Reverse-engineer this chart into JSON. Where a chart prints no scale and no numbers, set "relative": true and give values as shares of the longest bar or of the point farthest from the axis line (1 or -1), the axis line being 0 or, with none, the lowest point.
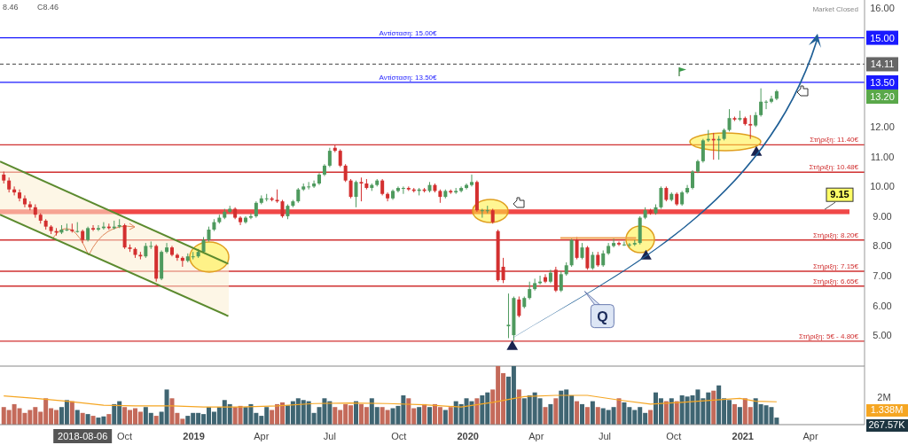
{
  "chart_data": [
    {
      "type": "candlestick",
      "xlim": [
        "2018-04-18",
        "2021-06-12"
      ],
      "ylim": [
        3.96,
        16.27
      ],
      "tick_labels": "y",
      "yticks": [
        {
          "value": 5,
          "label": "5.00"
        },
        {
          "value": 6,
          "label": "6.00"
        },
        {
          "value": 7,
          "label": "7.00"
        },
        {
          "value": 8,
          "label": "8.00"
        },
        {
          "value": 9,
          "label": "9.00"
        },
        {
          "value": 10,
          "label": "10.00"
        },
        {
          "value": 11,
          "label": "11.00"
        },
        {
          "value": 12,
          "label": "12.00"
        },
        {
          "value": 13.5,
          "label": "13.50"
        },
        {
          "value": 14.11,
          "label": "14.11"
        },
        {
          "value": 15,
          "label": "15.00"
        },
        {
          "value": 16,
          "label": "16.00"
        }
      ],
      "x": [
        "2018-04-23",
        "2018-04-30",
        "2018-05-07",
        "2018-05-14",
        "2018-05-21",
        "2018-05-28",
        "2018-06-04",
        "2018-06-11",
        "2018-06-18",
        "2018-06-25",
        "2018-07-02",
        "2018-07-09",
        "2018-07-16",
        "2018-07-23",
        "2018-07-30",
        "2018-08-06",
        "2018-08-13",
        "2018-08-20",
        "2018-08-27",
        "2018-09-03",
        "2018-09-10",
        "2018-09-17",
        "2018-09-24",
        "2018-10-01",
        "2018-10-08",
        "2018-10-15",
        "2018-10-22",
        "2018-10-29",
        "2018-11-05",
        "2018-11-12",
        "2018-11-19",
        "2018-11-26",
        "2018-12-03",
        "2018-12-10",
        "2018-12-17",
        "2018-12-24",
        "2018-12-31",
        "2019-01-07",
        "2019-01-14",
        "2019-01-21",
        "2019-01-28",
        "2019-02-04",
        "2019-02-11",
        "2019-02-18",
        "2019-02-25",
        "2019-03-04",
        "2019-03-11",
        "2019-03-18",
        "2019-03-25",
        "2019-04-01",
        "2019-04-08",
        "2019-04-15",
        "2019-04-22",
        "2019-04-29",
        "2019-05-06",
        "2019-05-13",
        "2019-05-20",
        "2019-05-27",
        "2019-06-03",
        "2019-06-10",
        "2019-06-17",
        "2019-06-24",
        "2019-07-01",
        "2019-07-08",
        "2019-07-15",
        "2019-07-22",
        "2019-07-29",
        "2019-08-05",
        "2019-08-12",
        "2019-08-19",
        "2019-08-26",
        "2019-09-02",
        "2019-09-09",
        "2019-09-16",
        "2019-09-23",
        "2019-09-30",
        "2019-10-07",
        "2019-10-14",
        "2019-10-21",
        "2019-10-28",
        "2019-11-04",
        "2019-11-11",
        "2019-11-18",
        "2019-11-25",
        "2019-12-02",
        "2019-12-09",
        "2019-12-16",
        "2019-12-23",
        "2019-12-30",
        "2020-01-06",
        "2020-01-13",
        "2020-01-20",
        "2020-01-27",
        "2020-02-03",
        "2020-02-10",
        "2020-02-17",
        "2020-02-24",
        "2020-03-02",
        "2020-03-09",
        "2020-03-16",
        "2020-03-23",
        "2020-03-30",
        "2020-04-06",
        "2020-04-13",
        "2020-04-20",
        "2020-04-27",
        "2020-05-04",
        "2020-05-11",
        "2020-05-18",
        "2020-05-25",
        "2020-06-01",
        "2020-06-08",
        "2020-06-15",
        "2020-06-22",
        "2020-06-29",
        "2020-07-06",
        "2020-07-13",
        "2020-07-20",
        "2020-07-27",
        "2020-08-03",
        "2020-08-10",
        "2020-08-17",
        "2020-08-24",
        "2020-08-31",
        "2020-09-07",
        "2020-09-14",
        "2020-09-21",
        "2020-09-28",
        "2020-10-05",
        "2020-10-12",
        "2020-10-19",
        "2020-10-26",
        "2020-11-02",
        "2020-11-09",
        "2020-11-16",
        "2020-11-23",
        "2020-11-30",
        "2020-12-07",
        "2020-12-14",
        "2020-12-21",
        "2020-12-28",
        "2021-01-04",
        "2021-01-11",
        "2021-01-18",
        "2021-01-25",
        "2021-02-01",
        "2021-02-08",
        "2021-02-15"
      ],
      "ohlc": [
        [
          10.4,
          10.5,
          10.1,
          10.2
        ],
        [
          10.2,
          10.3,
          9.8,
          9.9
        ],
        [
          9.9,
          10.0,
          9.7,
          9.8
        ],
        [
          9.8,
          9.9,
          9.5,
          9.6
        ],
        [
          9.6,
          9.7,
          9.3,
          9.4
        ],
        [
          9.4,
          9.5,
          9.2,
          9.3
        ],
        [
          9.3,
          9.4,
          8.95,
          9.05
        ],
        [
          9.05,
          9.1,
          8.75,
          8.85
        ],
        [
          8.85,
          8.9,
          8.55,
          8.65
        ],
        [
          8.65,
          8.7,
          8.4,
          8.5
        ],
        [
          8.5,
          8.6,
          8.35,
          8.45
        ],
        [
          8.45,
          8.7,
          8.4,
          8.55
        ],
        [
          8.55,
          8.75,
          8.5,
          8.55
        ],
        [
          8.55,
          8.75,
          8.45,
          8.5
        ],
        [
          8.5,
          8.8,
          8.45,
          8.5
        ],
        [
          8.5,
          8.55,
          8.1,
          8.2
        ],
        [
          8.2,
          8.65,
          8.15,
          8.6
        ],
        [
          8.6,
          8.7,
          8.5,
          8.55
        ],
        [
          8.55,
          8.7,
          8.5,
          8.6
        ],
        [
          8.6,
          8.8,
          8.55,
          8.65
        ],
        [
          8.65,
          8.75,
          8.55,
          8.6
        ],
        [
          8.6,
          8.85,
          8.55,
          8.65
        ],
        [
          8.65,
          8.9,
          8.6,
          8.7
        ],
        [
          8.7,
          8.75,
          7.9,
          7.95
        ],
        [
          7.95,
          8.05,
          7.8,
          7.9
        ],
        [
          7.9,
          7.95,
          7.6,
          7.7
        ],
        [
          7.7,
          7.8,
          7.55,
          7.65
        ],
        [
          7.65,
          8.1,
          7.6,
          8.0
        ],
        [
          8.0,
          8.15,
          7.9,
          8.0
        ],
        [
          8.0,
          8.05,
          6.8,
          6.9
        ],
        [
          6.9,
          7.85,
          6.85,
          7.8
        ],
        [
          7.8,
          8.1,
          7.75,
          7.95
        ],
        [
          7.95,
          8.0,
          7.65,
          7.7
        ],
        [
          7.7,
          7.75,
          7.5,
          7.6
        ],
        [
          7.6,
          7.65,
          7.3,
          7.5
        ],
        [
          7.5,
          7.75,
          7.45,
          7.65
        ],
        [
          7.65,
          7.8,
          7.55,
          7.65
        ],
        [
          7.65,
          7.9,
          7.6,
          7.8
        ],
        [
          7.8,
          8.3,
          7.75,
          8.2
        ],
        [
          8.2,
          8.65,
          8.15,
          8.55
        ],
        [
          8.55,
          8.9,
          8.5,
          8.8
        ],
        [
          8.8,
          9.05,
          8.75,
          8.95
        ],
        [
          8.95,
          9.25,
          8.9,
          9.15
        ],
        [
          9.15,
          9.35,
          9.1,
          9.25
        ],
        [
          9.25,
          9.3,
          8.9,
          8.95
        ],
        [
          8.95,
          9.0,
          8.7,
          8.8
        ],
        [
          8.8,
          9.0,
          8.75,
          8.95
        ],
        [
          8.95,
          9.1,
          8.9,
          9.0
        ],
        [
          9.0,
          9.5,
          8.95,
          9.45
        ],
        [
          9.45,
          9.7,
          9.4,
          9.6
        ],
        [
          9.6,
          9.75,
          9.5,
          9.6
        ],
        [
          9.6,
          9.65,
          9.5,
          9.55
        ],
        [
          9.55,
          9.9,
          9.45,
          9.5
        ],
        [
          9.5,
          9.55,
          8.95,
          9.0
        ],
        [
          9.0,
          9.4,
          8.9,
          9.35
        ],
        [
          9.35,
          9.55,
          9.3,
          9.5
        ],
        [
          9.5,
          9.95,
          9.45,
          9.9
        ],
        [
          9.9,
          10.1,
          9.85,
          10.0
        ],
        [
          10.0,
          10.15,
          9.9,
          10.0
        ],
        [
          10.0,
          10.2,
          9.95,
          10.1
        ],
        [
          10.1,
          10.45,
          10.05,
          10.4
        ],
        [
          10.4,
          10.75,
          10.35,
          10.7
        ],
        [
          10.7,
          11.3,
          10.65,
          11.2
        ],
        [
          11.3,
          11.4,
          11.15,
          11.2
        ],
        [
          11.2,
          11.25,
          10.65,
          10.7
        ],
        [
          10.7,
          10.75,
          10.15,
          10.2
        ],
        [
          10.2,
          10.25,
          9.6,
          9.65
        ],
        [
          9.65,
          10.2,
          9.3,
          10.15
        ],
        [
          10.15,
          10.3,
          9.5,
          10.1
        ],
        [
          10.1,
          10.25,
          9.9,
          9.95
        ],
        [
          9.95,
          10.1,
          9.85,
          10.05
        ],
        [
          10.05,
          10.25,
          10.0,
          10.2
        ],
        [
          10.2,
          10.25,
          9.7,
          9.75
        ],
        [
          9.75,
          9.8,
          9.5,
          9.6
        ],
        [
          9.6,
          9.9,
          9.55,
          9.85
        ],
        [
          9.85,
          10.0,
          9.8,
          9.95
        ],
        [
          9.95,
          10.0,
          9.75,
          9.95
        ],
        [
          9.95,
          10.0,
          9.85,
          9.9
        ],
        [
          9.9,
          9.95,
          9.8,
          9.85
        ],
        [
          9.85,
          9.95,
          9.7,
          9.9
        ],
        [
          9.9,
          9.95,
          9.8,
          9.85
        ],
        [
          9.85,
          10.15,
          9.8,
          10.05
        ],
        [
          10.05,
          10.1,
          9.8,
          9.85
        ],
        [
          9.85,
          9.9,
          9.45,
          9.65
        ],
        [
          9.65,
          9.9,
          9.6,
          9.85
        ],
        [
          9.85,
          9.9,
          9.75,
          9.8
        ],
        [
          9.8,
          9.95,
          9.75,
          9.85
        ],
        [
          9.85,
          10.0,
          9.8,
          9.95
        ],
        [
          9.95,
          10.1,
          9.9,
          10.05
        ],
        [
          10.05,
          10.4,
          10.0,
          10.15
        ],
        [
          10.15,
          10.2,
          9.15,
          9.2
        ],
        [
          9.2,
          9.25,
          8.95,
          9.2
        ],
        [
          9.2,
          9.35,
          9.1,
          9.2
        ],
        [
          9.2,
          9.25,
          8.75,
          8.8
        ],
        [
          8.5,
          8.55,
          6.8,
          6.85
        ],
        [
          7.3,
          7.6,
          6.75,
          6.85
        ],
        [
          5.3,
          6.4,
          4.9,
          5.35
        ],
        [
          5.0,
          6.3,
          4.8,
          6.25
        ],
        [
          6.2,
          6.3,
          5.6,
          5.65
        ],
        [
          5.95,
          6.3,
          5.9,
          6.25
        ],
        [
          6.25,
          6.8,
          6.2,
          6.55
        ],
        [
          6.55,
          6.9,
          6.5,
          6.75
        ],
        [
          6.75,
          7.0,
          6.7,
          6.8
        ],
        [
          6.95,
          7.05,
          6.75,
          6.8
        ],
        [
          6.8,
          7.2,
          6.75,
          7.1
        ],
        [
          7.2,
          7.3,
          6.45,
          6.5
        ],
        [
          6.5,
          7.15,
          6.45,
          7.05
        ],
        [
          7.05,
          7.45,
          7.0,
          7.35
        ],
        [
          7.35,
          8.25,
          7.3,
          8.2
        ],
        [
          8.2,
          8.3,
          7.55,
          7.6
        ],
        [
          7.6,
          8.1,
          7.55,
          7.95
        ],
        [
          7.95,
          8.0,
          7.2,
          7.25
        ],
        [
          7.25,
          7.8,
          7.2,
          7.7
        ],
        [
          7.7,
          7.8,
          7.3,
          7.35
        ],
        [
          7.35,
          7.85,
          7.3,
          7.75
        ],
        [
          7.75,
          8.1,
          7.7,
          8.0
        ],
        [
          8.0,
          8.25,
          7.95,
          8.1
        ],
        [
          8.1,
          8.15,
          8.0,
          8.05
        ],
        [
          8.05,
          8.15,
          8.0,
          8.05
        ],
        [
          8.05,
          8.1,
          7.95,
          8.05
        ],
        [
          8.05,
          8.2,
          8.0,
          8.1
        ],
        [
          8.1,
          9.0,
          8.05,
          8.95
        ],
        [
          8.95,
          9.3,
          8.9,
          9.2
        ],
        [
          9.2,
          9.25,
          9.05,
          9.1
        ],
        [
          9.1,
          9.4,
          9.05,
          9.3
        ],
        [
          9.3,
          10.0,
          9.25,
          9.95
        ],
        [
          9.95,
          10.0,
          9.5,
          9.55
        ],
        [
          9.55,
          9.8,
          9.5,
          9.75
        ],
        [
          9.75,
          9.8,
          9.35,
          9.4
        ],
        [
          9.4,
          9.85,
          9.35,
          9.8
        ],
        [
          9.8,
          10.05,
          9.75,
          9.95
        ],
        [
          9.95,
          10.55,
          9.9,
          10.5
        ],
        [
          10.5,
          10.9,
          10.45,
          10.85
        ],
        [
          10.85,
          11.6,
          10.8,
          11.55
        ],
        [
          11.55,
          11.9,
          11.5,
          11.6
        ],
        [
          11.6,
          11.8,
          10.9,
          11.55
        ],
        [
          11.55,
          11.7,
          10.9,
          11.6
        ],
        [
          11.6,
          11.95,
          11.55,
          11.9
        ],
        [
          11.9,
          12.6,
          11.85,
          12.3
        ],
        [
          12.3,
          12.35,
          12.2,
          12.25
        ],
        [
          12.25,
          12.55,
          12.2,
          12.3
        ],
        [
          12.3,
          12.35,
          12.05,
          12.1
        ],
        [
          12.1,
          12.4,
          11.6,
          12.05
        ],
        [
          12.05,
          12.5,
          12.0,
          12.4
        ],
        [
          12.4,
          13.3,
          12.35,
          12.85
        ],
        [
          12.85,
          12.9,
          12.6,
          12.85
        ],
        [
          12.85,
          13.05,
          12.8,
          12.95
        ],
        [
          12.95,
          13.25,
          12.9,
          13.2
        ]
      ],
      "colors": [
        "#d32f2f",
        "#d32f2f",
        "#d32f2f",
        "#d32f2f",
        "#d32f2f",
        "#d32f2f",
        "#d32f2f",
        "#d32f2f",
        "#d32f2f",
        "#d32f2f",
        "#d32f2f",
        "#4e9a5e",
        "#4e9a5e",
        "#d32f2f",
        "#4e9a5e",
        "#d32f2f",
        "#4e9a5e",
        "#d32f2f",
        "#4e9a5e",
        "#4e9a5e",
        "#d32f2f",
        "#4e9a5e",
        "#4e9a5e",
        "#d32f2f",
        "#d32f2f",
        "#d32f2f",
        "#d32f2f",
        "#4e9a5e",
        "#4e9a5e",
        "#d32f2f",
        "#4e9a5e",
        "#4e9a5e",
        "#d32f2f",
        "#d32f2f",
        "#d32f2f",
        "#4e9a5e",
        "#4e9a5e",
        "#4e9a5e",
        "#4e9a5e",
        "#4e9a5e",
        "#4e9a5e",
        "#4e9a5e",
        "#4e9a5e",
        "#4e9a5e",
        "#d32f2f",
        "#d32f2f",
        "#4e9a5e",
        "#4e9a5e",
        "#4e9a5e",
        "#4e9a5e",
        "#4e9a5e",
        "#d32f2f",
        "#d32f2f",
        "#d32f2f",
        "#4e9a5e",
        "#4e9a5e",
        "#4e9a5e",
        "#4e9a5e",
        "#4e9a5e",
        "#4e9a5e",
        "#4e9a5e",
        "#4e9a5e",
        "#4e9a5e",
        "#d32f2f",
        "#d32f2f",
        "#d32f2f",
        "#d32f2f",
        "#4e9a5e",
        "#d32f2f",
        "#d32f2f",
        "#4e9a5e",
        "#4e9a5e",
        "#d32f2f",
        "#d32f2f",
        "#4e9a5e",
        "#4e9a5e",
        "#4e9a5e",
        "#d32f2f",
        "#d32f2f",
        "#4e9a5e",
        "#d32f2f",
        "#4e9a5e",
        "#d32f2f",
        "#d32f2f",
        "#4e9a5e",
        "#d32f2f",
        "#4e9a5e",
        "#4e9a5e",
        "#4e9a5e",
        "#4e9a5e",
        "#d32f2f",
        "#4e9a5e",
        "#4e9a5e",
        "#d32f2f",
        "#d32f2f",
        "#d32f2f",
        "#4e9a5e",
        "#4e9a5e",
        "#d32f2f",
        "#4e9a5e",
        "#4e9a5e",
        "#4e9a5e",
        "#4e9a5e",
        "#d32f2f",
        "#4e9a5e",
        "#d32f2f",
        "#4e9a5e",
        "#4e9a5e",
        "#4e9a5e",
        "#d32f2f",
        "#4e9a5e",
        "#d32f2f",
        "#4e9a5e",
        "#d32f2f",
        "#4e9a5e",
        "#4e9a5e",
        "#4e9a5e",
        "#d32f2f",
        "#4e9a5e",
        "#4e9a5e",
        "#4e9a5e",
        "#4e9a5e",
        "#4e9a5e",
        "#d32f2f",
        "#4e9a5e",
        "#4e9a5e",
        "#d32f2f",
        "#4e9a5e",
        "#d32f2f",
        "#4e9a5e",
        "#4e9a5e",
        "#4e9a5e",
        "#4e9a5e",
        "#4e9a5e",
        "#4e9a5e",
        "#d32f2f",
        "#4e9a5e",
        "#4e9a5e",
        "#4e9a5e",
        "#d32f2f",
        "#4e9a5e",
        "#d32f2f",
        "#d32f2f",
        "#4e9a5e",
        "#4e9a5e",
        "#4e9a5e",
        "#4e9a5e",
        "#4e9a5e"
      ],
      "series": [
        {
          "type": "line",
          "x": [
            "2018-04-18",
            "2019-02-16"
          ],
          "values": [
            10.84,
            7.4
          ],
          "color": "#5b8a2e"
        },
        {
          "type": "line",
          "x": [
            "2018-04-18",
            "2019-02-16"
          ],
          "values": [
            9.05,
            5.64
          ],
          "color": "#5b8a2e"
        },
        {
          "type": "line",
          "x": [
            "2020-05-03",
            "2020-08-12"
          ],
          "values": [
            8.27,
            8.27
          ],
          "color": "#f0a050"
        },
        {
          "type": "scatter",
          "marker": "triangle",
          "x": [
            "2020-02-29",
            "2020-08-25",
            "2021-01-19"
          ],
          "values": [
            4.61,
            7.65,
            11.14
          ],
          "color": "#1a2450"
        }
      ],
      "bands": [
        {
          "axis": "y",
          "from": 9.07,
          "to": 9.23,
          "label": "9.15",
          "color": "#f04848"
        }
      ],
      "ref_lines": [
        {
          "axis": "y",
          "value": 15,
          "label": "Αντίσταση: 15.00€",
          "color": "#1a1aff"
        },
        {
          "axis": "y",
          "value": 14.11,
          "label": null,
          "color": "#666666",
          "line_style": "dashed"
        },
        {
          "axis": "y",
          "value": 13.5,
          "label": "Αντίσταση: 13.50€",
          "color": "#1a1aff"
        },
        {
          "axis": "y",
          "value": 11.4,
          "label": "Στήριξη: 11.40€",
          "color": "#d03030"
        },
        {
          "axis": "y",
          "value": 10.48,
          "label": "Στήριξη: 10.48€",
          "color": "#d03030"
        },
        {
          "axis": "y",
          "value": 8.2,
          "label": "Στήριξη: 8.20€",
          "color": "#d03030"
        },
        {
          "axis": "y",
          "value": 7.15,
          "label": "Στήριξη: 7.15€",
          "color": "#d03030"
        },
        {
          "axis": "y",
          "value": 6.65,
          "label": "Στήριξη: 6.65€",
          "color": "#d03030"
        },
        {
          "axis": "y",
          "value": 4.8,
          "label": "Στήριξη: 5€ - 4.80€",
          "color": "#d03030"
        }
      ],
      "annotations": [
        {
          "text": "Q",
          "x": "2020-06-28",
          "y": 5.64
        },
        "Market Closed",
        "8.46",
        "C8.46",
        "13.20"
      ]
    },
    {
      "type": "bar",
      "relative": true,
      "tick_labels": "x",
      "xlim": [
        "2018-04-18",
        "2021-06-12"
      ],
      "xticks": [
        {
          "value": "2018-08-06",
          "label": "2018-08-06"
        },
        {
          "value": "2018-10-01",
          "label": "Oct"
        },
        {
          "value": "2019-01-01",
          "label": "2019"
        },
        {
          "value": "2019-04-01",
          "label": "Apr"
        },
        {
          "value": "2019-07-01",
          "label": "Jul"
        },
        {
          "value": "2019-10-01",
          "label": "Oct"
        },
        {
          "value": "2020-01-01",
          "label": "2020"
        },
        {
          "value": "2020-04-01",
          "label": "Apr"
        },
        {
          "value": "2020-07-01",
          "label": "Jul"
        },
        {
          "value": "2020-10-01",
          "label": "Oct"
        },
        {
          "value": "2021-01-01",
          "label": "2021"
        },
        {
          "value": "2021-04-01",
          "label": "Apr"
        }
      ],
      "x": [
        "2018-04-23",
        "2018-04-30",
        "2018-05-07",
        "2018-05-14",
        "2018-05-21",
        "2018-05-28",
        "2018-06-04",
        "2018-06-11",
        "2018-06-18",
        "2018-06-25",
        "2018-07-02",
        "2018-07-09",
        "2018-07-16",
        "2018-07-23",
        "2018-07-30",
        "2018-08-06",
        "2018-08-13",
        "2018-08-20",
        "2018-08-27",
        "2018-09-03",
        "2018-09-10",
        "2018-09-17",
        "2018-09-24",
        "2018-10-01",
        "2018-10-08",
        "2018-10-15",
        "2018-10-22",
        "2018-10-29",
        "2018-11-05",
        "2018-11-12",
        "2018-11-19",
        "2018-11-26",
        "2018-12-03",
        "2018-12-10",
        "2018-12-17",
        "2018-12-24",
        "2018-12-31",
        "2019-01-07",
        "2019-01-14",
        "2019-01-21",
        "2019-01-28",
        "2019-02-04",
        "2019-02-11",
        "2019-02-18",
        "2019-02-25",
        "2019-03-04",
        "2019-03-11",
        "2019-03-18",
        "2019-03-25",
        "2019-04-01",
        "2019-04-08",
        "2019-04-15",
        "2019-04-22",
        "2019-04-29",
        "2019-05-06",
        "2019-05-13",
        "2019-05-20",
        "2019-05-27",
        "2019-06-03",
        "2019-06-10",
        "2019-06-17",
        "2019-06-24",
        "2019-07-01",
        "2019-07-08",
        "2019-07-15",
        "2019-07-22",
        "2019-07-29",
        "2019-08-05",
        "2019-08-12",
        "2019-08-19",
        "2019-08-26",
        "2019-09-02",
        "2019-09-09",
        "2019-09-16",
        "2019-09-23",
        "2019-09-30",
        "2019-10-07",
        "2019-10-14",
        "2019-10-21",
        "2019-10-28",
        "2019-11-04",
        "2019-11-11",
        "2019-11-18",
        "2019-11-25",
        "2019-12-02",
        "2019-12-09",
        "2019-12-16",
        "2019-12-23",
        "2019-12-30",
        "2020-01-06",
        "2020-01-13",
        "2020-01-20",
        "2020-01-27",
        "2020-02-03",
        "2020-02-10",
        "2020-02-17",
        "2020-02-24",
        "2020-03-02",
        "2020-03-09",
        "2020-03-16",
        "2020-03-23",
        "2020-03-30",
        "2020-04-06",
        "2020-04-13",
        "2020-04-20",
        "2020-04-27",
        "2020-05-04",
        "2020-05-11",
        "2020-05-18",
        "2020-05-25",
        "2020-06-01",
        "2020-06-08",
        "2020-06-15",
        "2020-06-22",
        "2020-06-29",
        "2020-07-06",
        "2020-07-13",
        "2020-07-20",
        "2020-07-27",
        "2020-08-03",
        "2020-08-10",
        "2020-08-17",
        "2020-08-24",
        "2020-08-31",
        "2020-09-07",
        "2020-09-14",
        "2020-09-21",
        "2020-09-28",
        "2020-10-05",
        "2020-10-12",
        "2020-10-19",
        "2020-10-26",
        "2020-11-02",
        "2020-11-09",
        "2020-11-16",
        "2020-11-23",
        "2020-11-30",
        "2020-12-07",
        "2020-12-14",
        "2020-12-21",
        "2020-12-28",
        "2021-01-04",
        "2021-01-11",
        "2021-01-18",
        "2021-01-25",
        "2021-02-01",
        "2021-02-08",
        "2021-02-15"
      ],
      "series": [
        {
          "type": "bar",
          "values": [
            0.3,
            0.25,
            0.35,
            0.28,
            0.2,
            0.25,
            0.3,
            0.22,
            0.45,
            0.28,
            0.25,
            0.3,
            0.42,
            0.4,
            0.25,
            0.2,
            0.18,
            0.15,
            0.12,
            0.14,
            0.18,
            0.35,
            0.4,
            0.3,
            0.25,
            0.28,
            0.22,
            0.3,
            0.2,
            0.15,
            0.22,
            0.6,
            0.45,
            0.2,
            0.1,
            0.15,
            0.2,
            0.2,
            0.18,
            0.3,
            0.22,
            0.3,
            0.42,
            0.35,
            0.3,
            0.32,
            0.3,
            0.35,
            0.2,
            0.15,
            0.3,
            0.25,
            0.35,
            0.38,
            0.33,
            0.4,
            0.45,
            0.42,
            0.4,
            0.2,
            0.3,
            0.45,
            0.4,
            0.3,
            0.25,
            0.35,
            0.33,
            0.4,
            0.35,
            0.3,
            0.45,
            0.3,
            0.3,
            0.25,
            0.28,
            0.32,
            0.5,
            0.45,
            0.28,
            0.3,
            0.35,
            0.3,
            0.35,
            0.3,
            0.25,
            0.3,
            0.4,
            0.35,
            0.45,
            0.4,
            0.45,
            0.5,
            0.55,
            0.6,
            1.0,
            0.88,
            0.82,
            1.0,
            0.6,
            0.45,
            0.5,
            0.55,
            0.45,
            0.3,
            0.35,
            0.45,
            0.58,
            0.6,
            0.5,
            0.4,
            0.35,
            0.3,
            0.4,
            0.3,
            0.28,
            0.25,
            0.3,
            0.45,
            0.38,
            0.3,
            0.25,
            0.3,
            0.2,
            0.25,
            0.55,
            0.45,
            0.4,
            0.45,
            0.4,
            0.5,
            0.48,
            0.5,
            0.6,
            0.45,
            0.55,
            0.58,
            0.67,
            0.45,
            0.42,
            0.35,
            0.3,
            0.45,
            0.3,
            0.45,
            0.35,
            0.33,
            0.3,
            0.12
          ],
          "colors": [
            "#c46a5a",
            "#c46a5a",
            "#c46a5a",
            "#c46a5a",
            "#c46a5a",
            "#c46a5a",
            "#c46a5a",
            "#c46a5a",
            "#c46a5a",
            "#c46a5a",
            "#c46a5a",
            "#3f6572",
            "#3f6572",
            "#c46a5a",
            "#3f6572",
            "#c46a5a",
            "#3f6572",
            "#c46a5a",
            "#3f6572",
            "#3f6572",
            "#c46a5a",
            "#3f6572",
            "#3f6572",
            "#c46a5a",
            "#c46a5a",
            "#c46a5a",
            "#c46a5a",
            "#3f6572",
            "#3f6572",
            "#c46a5a",
            "#3f6572",
            "#3f6572",
            "#c46a5a",
            "#c46a5a",
            "#c46a5a",
            "#3f6572",
            "#3f6572",
            "#3f6572",
            "#3f6572",
            "#3f6572",
            "#3f6572",
            "#3f6572",
            "#3f6572",
            "#3f6572",
            "#c46a5a",
            "#c46a5a",
            "#3f6572",
            "#3f6572",
            "#3f6572",
            "#3f6572",
            "#3f6572",
            "#c46a5a",
            "#c46a5a",
            "#c46a5a",
            "#3f6572",
            "#3f6572",
            "#3f6572",
            "#3f6572",
            "#3f6572",
            "#3f6572",
            "#3f6572",
            "#3f6572",
            "#3f6572",
            "#c46a5a",
            "#c46a5a",
            "#c46a5a",
            "#c46a5a",
            "#3f6572",
            "#c46a5a",
            "#c46a5a",
            "#3f6572",
            "#3f6572",
            "#c46a5a",
            "#c46a5a",
            "#3f6572",
            "#3f6572",
            "#3f6572",
            "#c46a5a",
            "#c46a5a",
            "#3f6572",
            "#c46a5a",
            "#3f6572",
            "#c46a5a",
            "#c46a5a",
            "#3f6572",
            "#c46a5a",
            "#3f6572",
            "#3f6572",
            "#3f6572",
            "#3f6572",
            "#c46a5a",
            "#3f6572",
            "#3f6572",
            "#c46a5a",
            "#c46a5a",
            "#c46a5a",
            "#3f6572",
            "#3f6572",
            "#c46a5a",
            "#3f6572",
            "#3f6572",
            "#3f6572",
            "#3f6572",
            "#c46a5a",
            "#3f6572",
            "#c46a5a",
            "#3f6572",
            "#3f6572",
            "#3f6572",
            "#c46a5a",
            "#3f6572",
            "#c46a5a",
            "#3f6572",
            "#c46a5a",
            "#3f6572",
            "#3f6572",
            "#3f6572",
            "#c46a5a",
            "#3f6572",
            "#3f6572",
            "#3f6572",
            "#3f6572",
            "#3f6572",
            "#c46a5a",
            "#3f6572",
            "#3f6572",
            "#c46a5a",
            "#3f6572",
            "#c46a5a",
            "#3f6572",
            "#3f6572",
            "#3f6572",
            "#3f6572",
            "#3f6572",
            "#3f6572",
            "#c46a5a",
            "#3f6572",
            "#3f6572",
            "#3f6572",
            "#c46a5a",
            "#3f6572",
            "#c46a5a",
            "#c46a5a",
            "#3f6572",
            "#3f6572",
            "#3f6572",
            "#3f6572",
            "#3f6572"
          ]
        },
        {
          "type": "line",
          "color": "#f5a623",
          "x": [
            "2018-04-23",
            "2018-06-04",
            "2018-07-16",
            "2018-09-03",
            "2018-10-15",
            "2018-12-03",
            "2019-01-14",
            "2019-03-04",
            "2019-04-22",
            "2019-06-10",
            "2019-07-29",
            "2019-09-16",
            "2019-11-04",
            "2019-12-23",
            "2020-02-03",
            "2020-03-16",
            "2020-04-27",
            "2020-06-08",
            "2020-07-20",
            "2020-08-31",
            "2020-10-12",
            "2020-11-23",
            "2020-12-28",
            "2021-01-18",
            "2021-02-15"
          ],
          "values": [
            0.49,
            0.45,
            0.4,
            0.33,
            0.32,
            0.32,
            0.3,
            0.3,
            0.32,
            0.36,
            0.37,
            0.36,
            0.34,
            0.3,
            0.38,
            0.48,
            0.5,
            0.5,
            0.42,
            0.35,
            0.38,
            0.42,
            0.45,
            0.4,
            0.39
          ]
        }
      ],
      "annotations": [
        "2M",
        "1.338M",
        "267.57K"
      ]
    }
  ]
}
